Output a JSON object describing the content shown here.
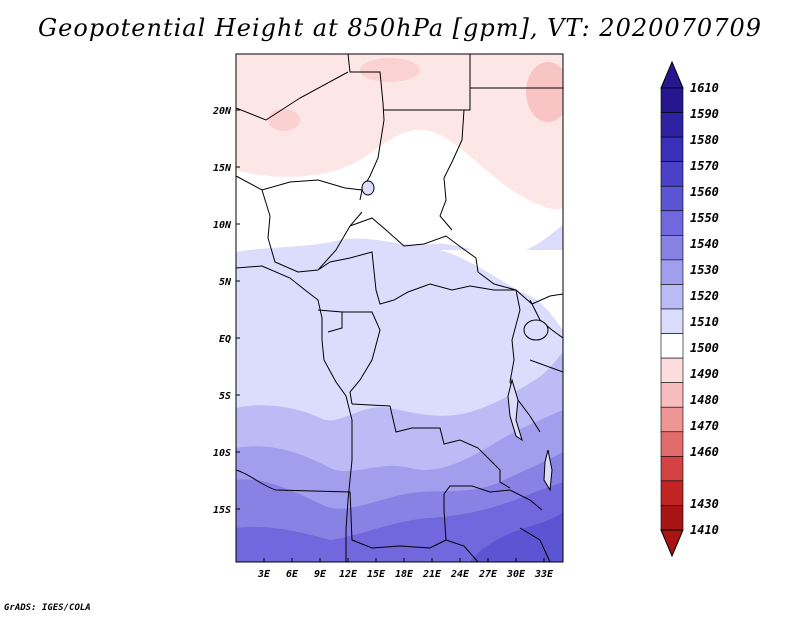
{
  "title": "Geopotential Height at 850hPa [gpm], VT: 2020070709",
  "credit": "GrADS: IGES/COLA",
  "map": {
    "region": "Central Africa",
    "lat_labels": [
      "20N",
      "15N",
      "10N",
      "5N",
      "EQ",
      "5S",
      "10S",
      "15S"
    ],
    "lon_labels": [
      "3E",
      "6E",
      "9E",
      "12E",
      "15E",
      "18E",
      "21E",
      "24E",
      "27E",
      "30E",
      "33E"
    ]
  },
  "colorbar": {
    "labels": [
      "1610",
      "1590",
      "1580",
      "1570",
      "1560",
      "1550",
      "1540",
      "1530",
      "1520",
      "1510",
      "1500",
      "1490",
      "1480",
      "1470",
      "1460",
      "1430",
      "1410"
    ],
    "colors": [
      "#27168f",
      "#2e22a3",
      "#3a2fb8",
      "#4a41c6",
      "#5c55d3",
      "#7068dc",
      "#8882e5",
      "#a19eee",
      "#bdbbf5",
      "#dcdcfc",
      "#ffffff",
      "#fcdcdc",
      "#f7bcbc",
      "#ee9696",
      "#e26b6b",
      "#d34343",
      "#c22424",
      "#a81414"
    ]
  }
}
